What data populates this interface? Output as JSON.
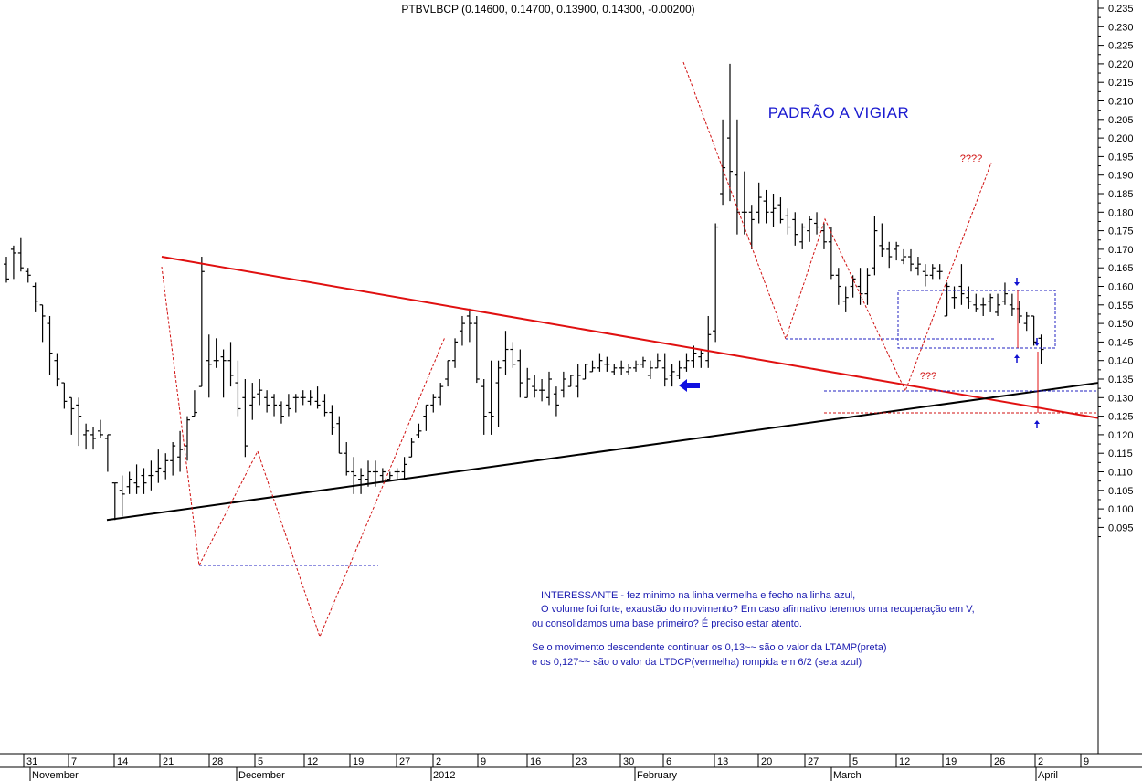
{
  "chart_data": {
    "type": "ohlc",
    "title": "PTBVLBCP (0.14600, 0.14700, 0.13900, 0.14300, -0.00200)",
    "ylim": [
      0.09,
      0.235
    ],
    "y_ticks": [
      0.095,
      0.1,
      0.105,
      0.11,
      0.115,
      0.12,
      0.125,
      0.13,
      0.135,
      0.14,
      0.145,
      0.15,
      0.155,
      0.16,
      0.165,
      0.17,
      0.175,
      0.18,
      0.185,
      0.19,
      0.195,
      0.2,
      0.205,
      0.21,
      0.215,
      0.22,
      0.225,
      0.23,
      0.235
    ],
    "y_tick_labels": [
      "0.095",
      "0.100",
      "0.105",
      "0.110",
      "0.115",
      "0.120",
      "0.125",
      "0.130",
      "0.135",
      "0.140",
      "0.145",
      "0.150",
      "0.155",
      "0.160",
      "0.165",
      "0.170",
      "0.175",
      "0.180",
      "0.185",
      "0.190",
      "0.195",
      "0.200",
      "0.205",
      "0.210",
      "0.215",
      "0.220",
      "0.225",
      "0.230",
      "0.235"
    ],
    "x_day_labels": [
      "31",
      "7",
      "14",
      "21",
      "28",
      "5",
      "12",
      "19",
      "27",
      "2",
      "9",
      "16",
      "23",
      "30",
      "6",
      "13",
      "20",
      "27",
      "5",
      "12",
      "19",
      "26",
      "2",
      "9"
    ],
    "x_month_labels": [
      "November",
      "December",
      "2012",
      "February",
      "March",
      "April"
    ],
    "bars": [
      [
        0.166,
        0.168,
        0.161,
        0.162
      ],
      [
        0.17,
        0.171,
        0.162,
        0.169
      ],
      [
        0.169,
        0.173,
        0.164,
        0.165
      ],
      [
        0.164,
        0.165,
        0.161,
        0.163
      ],
      [
        0.16,
        0.161,
        0.153,
        0.156
      ],
      [
        0.155,
        0.155,
        0.145,
        0.152
      ],
      [
        0.15,
        0.152,
        0.136,
        0.142
      ],
      [
        0.14,
        0.142,
        0.133,
        0.135
      ],
      [
        0.134,
        0.134,
        0.127,
        0.129
      ],
      [
        0.13,
        0.13,
        0.12,
        0.127
      ],
      [
        0.128,
        0.13,
        0.117,
        0.125
      ],
      [
        0.12,
        0.123,
        0.116,
        0.121
      ],
      [
        0.12,
        0.122,
        0.116,
        0.119
      ],
      [
        0.121,
        0.124,
        0.119,
        0.12
      ],
      [
        0.119,
        0.12,
        0.11,
        0.12
      ],
      [
        0.107,
        0.107,
        0.097,
        0.107
      ],
      [
        0.105,
        0.109,
        0.098,
        0.104
      ],
      [
        0.106,
        0.11,
        0.104,
        0.108
      ],
      [
        0.107,
        0.112,
        0.104,
        0.106
      ],
      [
        0.109,
        0.111,
        0.104,
        0.107
      ],
      [
        0.109,
        0.113,
        0.105,
        0.109
      ],
      [
        0.11,
        0.116,
        0.107,
        0.111
      ],
      [
        0.11,
        0.115,
        0.108,
        0.113
      ],
      [
        0.113,
        0.118,
        0.109,
        0.117
      ],
      [
        0.114,
        0.121,
        0.11,
        0.116
      ],
      [
        0.117,
        0.125,
        0.113,
        0.124
      ],
      [
        0.125,
        0.132,
        0.125,
        0.126
      ],
      [
        0.133,
        0.168,
        0.133,
        0.164
      ],
      [
        0.14,
        0.147,
        0.13,
        0.139
      ],
      [
        0.14,
        0.146,
        0.138,
        0.14
      ],
      [
        0.141,
        0.143,
        0.13,
        0.14
      ],
      [
        0.14,
        0.145,
        0.133,
        0.136
      ],
      [
        0.134,
        0.14,
        0.125,
        0.127
      ],
      [
        0.13,
        0.135,
        0.114,
        0.117
      ],
      [
        0.128,
        0.134,
        0.124,
        0.13
      ],
      [
        0.131,
        0.135,
        0.128,
        0.132
      ],
      [
        0.13,
        0.132,
        0.126,
        0.128
      ],
      [
        0.13,
        0.131,
        0.125,
        0.128
      ],
      [
        0.128,
        0.129,
        0.123,
        0.125
      ],
      [
        0.128,
        0.131,
        0.125,
        0.127
      ],
      [
        0.13,
        0.131,
        0.126,
        0.13
      ],
      [
        0.13,
        0.132,
        0.128,
        0.13
      ],
      [
        0.129,
        0.132,
        0.128,
        0.13
      ],
      [
        0.129,
        0.133,
        0.127,
        0.128
      ],
      [
        0.129,
        0.131,
        0.125,
        0.126
      ],
      [
        0.126,
        0.128,
        0.12,
        0.122
      ],
      [
        0.123,
        0.125,
        0.115,
        0.115
      ],
      [
        0.115,
        0.118,
        0.109,
        0.11
      ],
      [
        0.11,
        0.114,
        0.104,
        0.109
      ],
      [
        0.108,
        0.111,
        0.104,
        0.109
      ],
      [
        0.108,
        0.113,
        0.106,
        0.11
      ],
      [
        0.11,
        0.113,
        0.106,
        0.11
      ],
      [
        0.109,
        0.111,
        0.107,
        0.11
      ],
      [
        0.108,
        0.11,
        0.108,
        0.109
      ],
      [
        0.11,
        0.111,
        0.108,
        0.11
      ],
      [
        0.11,
        0.114,
        0.108,
        0.112
      ],
      [
        0.114,
        0.119,
        0.114,
        0.118
      ],
      [
        0.12,
        0.123,
        0.119,
        0.121
      ],
      [
        0.125,
        0.128,
        0.121,
        0.128
      ],
      [
        0.128,
        0.131,
        0.126,
        0.13
      ],
      [
        0.13,
        0.134,
        0.128,
        0.133
      ],
      [
        0.135,
        0.14,
        0.133,
        0.14
      ],
      [
        0.14,
        0.146,
        0.138,
        0.145
      ],
      [
        0.148,
        0.152,
        0.144,
        0.15
      ],
      [
        0.152,
        0.154,
        0.145,
        0.15
      ],
      [
        0.15,
        0.152,
        0.134,
        0.135
      ],
      [
        0.133,
        0.135,
        0.12,
        0.125
      ],
      [
        0.126,
        0.14,
        0.12,
        0.125
      ],
      [
        0.134,
        0.14,
        0.122,
        0.138
      ],
      [
        0.14,
        0.148,
        0.136,
        0.143
      ],
      [
        0.143,
        0.145,
        0.138,
        0.139
      ],
      [
        0.14,
        0.143,
        0.13,
        0.134
      ],
      [
        0.13,
        0.138,
        0.13,
        0.135
      ],
      [
        0.133,
        0.136,
        0.13,
        0.132
      ],
      [
        0.132,
        0.135,
        0.129,
        0.132
      ],
      [
        0.13,
        0.137,
        0.128,
        0.135
      ],
      [
        0.131,
        0.133,
        0.125,
        0.128
      ],
      [
        0.132,
        0.137,
        0.13,
        0.135
      ],
      [
        0.133,
        0.136,
        0.133,
        0.136
      ],
      [
        0.133,
        0.139,
        0.13,
        0.136
      ],
      [
        0.135,
        0.139,
        0.135,
        0.139
      ],
      [
        0.137,
        0.14,
        0.137,
        0.138
      ],
      [
        0.138,
        0.142,
        0.137,
        0.14
      ],
      [
        0.139,
        0.141,
        0.137,
        0.139
      ],
      [
        0.137,
        0.139,
        0.136,
        0.138
      ],
      [
        0.138,
        0.14,
        0.136,
        0.138
      ],
      [
        0.137,
        0.139,
        0.136,
        0.138
      ],
      [
        0.138,
        0.14,
        0.137,
        0.139
      ],
      [
        0.139,
        0.141,
        0.138,
        0.14
      ],
      [
        0.136,
        0.14,
        0.135,
        0.138
      ],
      [
        0.138,
        0.142,
        0.138,
        0.14
      ],
      [
        0.138,
        0.142,
        0.133,
        0.135
      ],
      [
        0.136,
        0.139,
        0.133,
        0.137
      ],
      [
        0.136,
        0.14,
        0.135,
        0.138
      ],
      [
        0.138,
        0.142,
        0.137,
        0.14
      ],
      [
        0.14,
        0.144,
        0.138,
        0.142
      ],
      [
        0.141,
        0.143,
        0.138,
        0.142
      ],
      [
        0.14,
        0.152,
        0.138,
        0.147
      ],
      [
        0.148,
        0.177,
        0.145,
        0.176
      ],
      [
        0.185,
        0.205,
        0.182,
        0.192
      ],
      [
        0.2,
        0.22,
        0.183,
        0.191
      ],
      [
        0.19,
        0.205,
        0.174,
        0.18
      ],
      [
        0.18,
        0.191,
        0.174,
        0.18
      ],
      [
        0.18,
        0.182,
        0.17,
        0.178
      ],
      [
        0.18,
        0.188,
        0.177,
        0.184
      ],
      [
        0.183,
        0.186,
        0.177,
        0.18
      ],
      [
        0.18,
        0.185,
        0.176,
        0.181
      ],
      [
        0.182,
        0.184,
        0.177,
        0.178
      ],
      [
        0.179,
        0.181,
        0.174,
        0.176
      ],
      [
        0.178,
        0.18,
        0.171,
        0.174
      ],
      [
        0.172,
        0.177,
        0.17,
        0.176
      ],
      [
        0.175,
        0.179,
        0.172,
        0.178
      ],
      [
        0.177,
        0.18,
        0.174,
        0.176
      ],
      [
        0.175,
        0.177,
        0.17,
        0.172
      ],
      [
        0.172,
        0.176,
        0.162,
        0.163
      ],
      [
        0.163,
        0.165,
        0.155,
        0.16
      ],
      [
        0.156,
        0.16,
        0.153,
        0.157
      ],
      [
        0.16,
        0.163,
        0.157,
        0.162
      ],
      [
        0.16,
        0.165,
        0.155,
        0.158
      ],
      [
        0.158,
        0.165,
        0.155,
        0.163
      ],
      [
        0.165,
        0.179,
        0.163,
        0.175
      ],
      [
        0.171,
        0.177,
        0.168,
        0.17
      ],
      [
        0.17,
        0.172,
        0.165,
        0.168
      ],
      [
        0.17,
        0.172,
        0.167,
        0.171
      ],
      [
        0.167,
        0.17,
        0.166,
        0.168
      ],
      [
        0.168,
        0.17,
        0.164,
        0.166
      ],
      [
        0.165,
        0.168,
        0.163,
        0.166
      ],
      [
        0.164,
        0.166,
        0.16,
        0.163
      ],
      [
        0.163,
        0.166,
        0.162,
        0.165
      ],
      [
        0.164,
        0.166,
        0.162,
        0.164
      ],
      [
        0.152,
        0.161,
        0.152,
        0.16
      ],
      [
        0.157,
        0.16,
        0.154,
        0.157
      ],
      [
        0.16,
        0.166,
        0.155,
        0.158
      ],
      [
        0.157,
        0.16,
        0.154,
        0.156
      ],
      [
        0.155,
        0.158,
        0.153,
        0.154
      ],
      [
        0.155,
        0.157,
        0.152,
        0.155
      ],
      [
        0.156,
        0.158,
        0.153,
        0.157
      ],
      [
        0.153,
        0.158,
        0.152,
        0.155
      ],
      [
        0.156,
        0.161,
        0.155,
        0.158
      ],
      [
        0.155,
        0.158,
        0.152,
        0.154
      ],
      [
        0.154,
        0.156,
        0.15,
        0.152
      ],
      [
        0.15,
        0.153,
        0.148,
        0.152
      ],
      [
        0.152,
        0.152,
        0.144,
        0.145
      ],
      [
        0.146,
        0.147,
        0.139,
        0.143
      ]
    ],
    "lines": {
      "red_downtrend": [
        [
          0.168,
          0.1245
        ]
      ],
      "black_uptrend": [
        [
          0.097,
          0.134
        ]
      ]
    },
    "annotations": {
      "headline": "PADRÃO A VIGIAR",
      "question_top": "????",
      "question_mid": "???",
      "note_lines": [
        "INTERESSANTE - fez minimo na linha vermelha e fecho na linha azul,",
        " O volume foi forte, exaustão do movimento? Em caso afirmativo teremos uma recuperação em V,",
        "ou consolidamos uma base  primeiro? É preciso estar atento.",
        "",
        "Se o movimento descendente continuar os 0,13~~ são o valor da LTAMP(preta)",
        "e os 0,127~~ são o valor da LTDCP(vermelha) rompida em 6/2  (seta azul)"
      ]
    },
    "grid": false,
    "legend": "none"
  },
  "colors": {
    "bar": "#000000",
    "red_line": "#e01010",
    "black_line": "#000000",
    "blue_dotted": "#2020c0",
    "red_dotted": "#d01010",
    "headline": "#1a1ad0",
    "note": "#1a1ab0"
  }
}
